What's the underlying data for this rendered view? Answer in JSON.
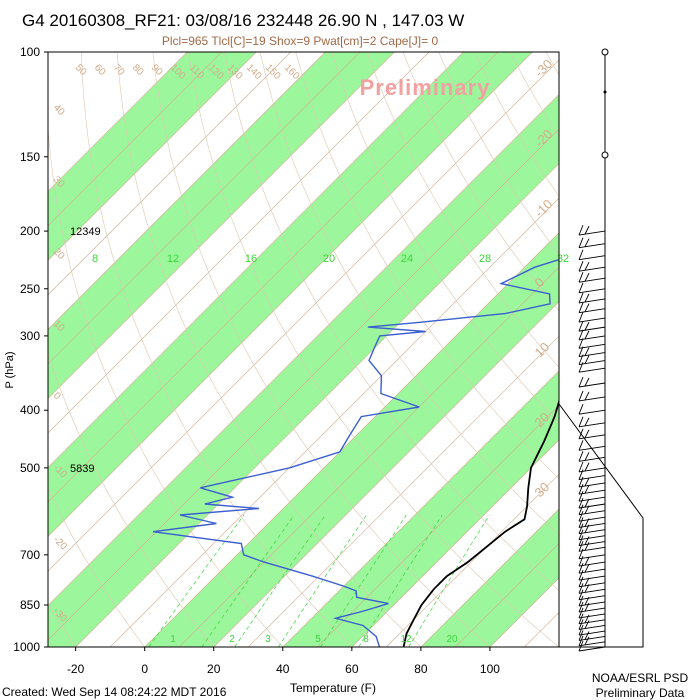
{
  "chart_data": {
    "type": "skew-t",
    "title": "G4 20160308_RF21: 03/08/16 232448  26.90 N , 147.03 W",
    "subtitle": "Plcl=965 Tlcl[C]=19 Shox=9 Pwat[cm]=2 Cape[J]= 0",
    "watermark": "Preliminary",
    "xlabel": "Temperature (F)",
    "ylabel": "P (hPa)",
    "x_ticks": [
      "-20",
      "0",
      "20",
      "40",
      "60",
      "80",
      "100"
    ],
    "xlim": [
      -28,
      120
    ],
    "y_ticks": [
      "100",
      "150",
      "200",
      "250",
      "300",
      "400",
      "500",
      "700",
      "850",
      "1000"
    ],
    "ylim": [
      1000,
      100
    ],
    "y_scale": "log",
    "heights": [
      {
        "pressure": 200,
        "label": "12349"
      },
      {
        "pressure": 500,
        "label": "5839"
      }
    ],
    "mixing_ratio_labels_top": [
      "8",
      "12",
      "16",
      "20",
      "24",
      "28",
      "32"
    ],
    "mixing_ratio_labels_bottom": [
      "1",
      "2",
      "3",
      "5",
      "8",
      "12",
      "20"
    ],
    "isotherm_labels_top": [
      "50",
      "60",
      "70",
      "80",
      "90",
      "100",
      "110",
      "120",
      "130",
      "140",
      "150",
      "160"
    ],
    "isotherm_labels_left": [
      "40",
      "30",
      "20",
      "10",
      "0",
      "-10",
      "-20",
      "-30"
    ],
    "isotherm_labels_right": [
      "30",
      "20",
      "10",
      "0",
      "-10",
      "-20",
      "-30"
    ],
    "temperature_series": {
      "name": "Temperature",
      "color": "#000000",
      "points": [
        {
          "p": 185,
          "t": 30
        },
        {
          "p": 200,
          "t": 32
        },
        {
          "p": 220,
          "t": 34
        },
        {
          "p": 240,
          "t": 37
        },
        {
          "p": 260,
          "t": 40
        },
        {
          "p": 280,
          "t": 43
        },
        {
          "p": 295,
          "t": 44
        },
        {
          "p": 310,
          "t": 43
        },
        {
          "p": 330,
          "t": 45
        },
        {
          "p": 350,
          "t": 46
        },
        {
          "p": 380,
          "t": 48
        },
        {
          "p": 410,
          "t": 52
        },
        {
          "p": 450,
          "t": 56
        },
        {
          "p": 500,
          "t": 60
        },
        {
          "p": 540,
          "t": 65
        },
        {
          "p": 580,
          "t": 70
        },
        {
          "p": 610,
          "t": 73
        },
        {
          "p": 640,
          "t": 71
        },
        {
          "p": 680,
          "t": 70
        },
        {
          "p": 720,
          "t": 69
        },
        {
          "p": 760,
          "t": 67
        },
        {
          "p": 800,
          "t": 67
        },
        {
          "p": 850,
          "t": 68
        },
        {
          "p": 900,
          "t": 70
        },
        {
          "p": 950,
          "t": 72
        },
        {
          "p": 1000,
          "t": 75
        }
      ]
    },
    "dewpoint_series": {
      "name": "Dew point",
      "color": "#3a5fd0",
      "points": [
        {
          "p": 205,
          "t": 17
        },
        {
          "p": 215,
          "t": 14
        },
        {
          "p": 230,
          "t": 3
        },
        {
          "p": 245,
          "t": -2
        },
        {
          "p": 255,
          "t": 15
        },
        {
          "p": 265,
          "t": 18
        },
        {
          "p": 275,
          "t": 8
        },
        {
          "p": 285,
          "t": -15
        },
        {
          "p": 290,
          "t": -28
        },
        {
          "p": 295,
          "t": -10
        },
        {
          "p": 300,
          "t": -22
        },
        {
          "p": 315,
          "t": -20
        },
        {
          "p": 330,
          "t": -18
        },
        {
          "p": 350,
          "t": -10
        },
        {
          "p": 375,
          "t": -5
        },
        {
          "p": 395,
          "t": 10
        },
        {
          "p": 410,
          "t": -4
        },
        {
          "p": 440,
          "t": -2
        },
        {
          "p": 470,
          "t": 0
        },
        {
          "p": 500,
          "t": -10
        },
        {
          "p": 540,
          "t": -30
        },
        {
          "p": 560,
          "t": -18
        },
        {
          "p": 575,
          "t": -24
        },
        {
          "p": 585,
          "t": -7
        },
        {
          "p": 600,
          "t": -28
        },
        {
          "p": 620,
          "t": -15
        },
        {
          "p": 640,
          "t": -31
        },
        {
          "p": 670,
          "t": -2
        },
        {
          "p": 700,
          "t": 2
        },
        {
          "p": 720,
          "t": 10
        },
        {
          "p": 760,
          "t": 28
        },
        {
          "p": 790,
          "t": 40
        },
        {
          "p": 805,
          "t": 45
        },
        {
          "p": 825,
          "t": 47
        },
        {
          "p": 845,
          "t": 58
        },
        {
          "p": 870,
          "t": 53
        },
        {
          "p": 895,
          "t": 47
        },
        {
          "p": 920,
          "t": 57
        },
        {
          "p": 960,
          "t": 64
        },
        {
          "p": 1000,
          "t": 68
        }
      ]
    },
    "wind_barb_pressures": [
      200,
      210,
      220,
      230,
      240,
      250,
      260,
      270,
      280,
      290,
      300,
      310,
      320,
      330,
      340,
      360,
      380,
      400,
      420,
      440,
      460,
      480,
      500,
      515,
      530,
      545,
      560,
      575,
      590,
      605,
      620,
      635,
      650,
      665,
      680,
      700,
      720,
      740,
      760,
      780,
      800,
      820,
      840,
      860,
      880,
      900,
      920,
      940,
      960,
      980,
      1000
    ],
    "grid": true
  },
  "footer": {
    "created": "Created: Wed Sep 14 08:24:22 MDT 2016",
    "credit_line1": "NOAA/ESRL PSD",
    "credit_line2": "Preliminary Data"
  },
  "colors": {
    "band": "#9cf79c",
    "isotherm": "#d3ab8b",
    "mixing_ratio": "#39d839",
    "adiabat": "#dcc8b0",
    "axis_label": "#000000"
  }
}
